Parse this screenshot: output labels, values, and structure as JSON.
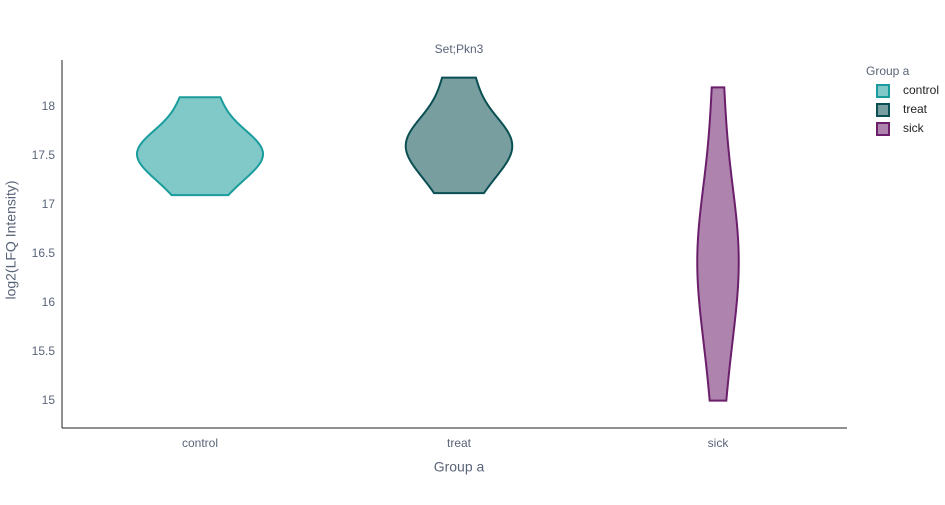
{
  "chart_data": {
    "type": "violin",
    "title": "Set;Pkn3",
    "x_label": "Group a",
    "y_label": "log2(LFQ Intensity)",
    "legend_title": "Group a",
    "legend_position": "right",
    "categories": [
      "control",
      "treat",
      "sick"
    ],
    "series": [
      {
        "name": "control",
        "color": "#1a9c9c",
        "values": [
          17.1,
          17.45,
          17.5,
          17.55,
          17.65,
          18.1
        ]
      },
      {
        "name": "treat",
        "color": "#0a4f52",
        "values": [
          17.12,
          17.5,
          17.6,
          17.65,
          17.75,
          18.3
        ]
      },
      {
        "name": "sick",
        "color": "#6b1f6b",
        "values": [
          15.0,
          15.9,
          16.3,
          16.45,
          16.6,
          17.0,
          18.2
        ]
      }
    ],
    "ylim": [
      14.72,
      18.48
    ],
    "yticks": [
      15,
      15.5,
      16,
      16.5,
      17,
      17.5,
      18
    ],
    "grid": false
  }
}
